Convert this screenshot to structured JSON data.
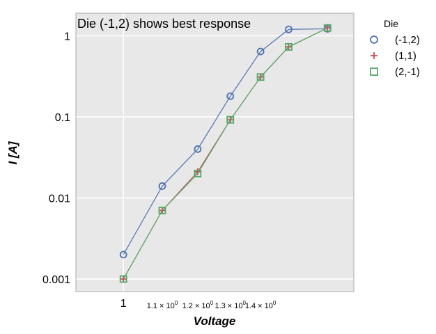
{
  "chart_data": {
    "type": "line",
    "annotation": "Die (-1,2) shows best response",
    "xlabel": "Voltage",
    "ylabel": "I [A]",
    "xscale": "log",
    "yscale": "log",
    "grid": true,
    "legend": {
      "title": "Die",
      "placement": "outside-right"
    },
    "x_ticks_major": [
      {
        "value": 1,
        "label": "1"
      }
    ],
    "x_ticks_minor": [
      {
        "value": 1.1,
        "label": "1.1 × 10",
        "exp": "0"
      },
      {
        "value": 1.2,
        "label": "1.2 × 10",
        "exp": "0"
      },
      {
        "value": 1.3,
        "label": "1.3 × 10",
        "exp": "0"
      },
      {
        "value": 1.4,
        "label": "1.4 × 10",
        "exp": "0"
      }
    ],
    "y_ticks": [
      {
        "value": 0.001,
        "label": "0.001"
      },
      {
        "value": 0.01,
        "label": "0.01"
      },
      {
        "value": 0.1,
        "label": "0.1"
      },
      {
        "value": 1,
        "label": "1"
      }
    ],
    "xlim": [
      0.89,
      1.76
    ],
    "ylim": [
      0.0007,
      1.9
    ],
    "x": [
      1.0,
      1.1,
      1.2,
      1.3,
      1.4,
      1.5,
      1.65
    ],
    "series": [
      {
        "name": "(-1,2)",
        "marker": "circle",
        "color": "#4c72b0",
        "values": [
          0.002,
          0.014,
          0.04,
          0.18,
          0.64,
          1.2,
          1.22
        ]
      },
      {
        "name": "(1,1)",
        "marker": "plus",
        "color": "#c44e52",
        "values": [
          0.001,
          0.007,
          0.021,
          0.092,
          0.31,
          0.73,
          1.25
        ]
      },
      {
        "name": "(2,-1)",
        "marker": "square",
        "color": "#55a868",
        "values": [
          0.001,
          0.007,
          0.02,
          0.092,
          0.31,
          0.73,
          1.25
        ]
      }
    ],
    "colors": {
      "plot_bg": "#e8e8e8",
      "grid": "#ffffff",
      "frame": "#aaaaaa"
    }
  }
}
